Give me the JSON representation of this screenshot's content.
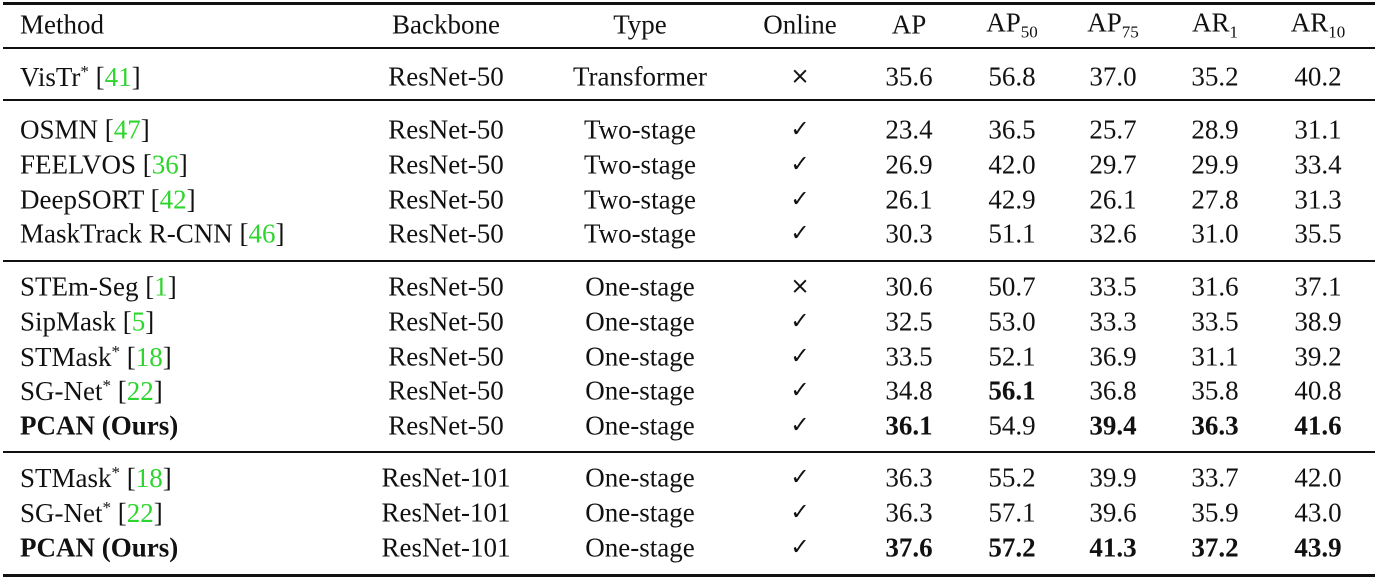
{
  "header": [
    {
      "text": "Method"
    },
    {
      "text": "Backbone"
    },
    {
      "text": "Type"
    },
    {
      "text": "Online"
    },
    {
      "text": "AP"
    },
    {
      "text": "AP",
      "sub": "50"
    },
    {
      "text": "AP",
      "sub": "75"
    },
    {
      "text": "AR",
      "sub": "1"
    },
    {
      "text": "AR",
      "sub": "10"
    }
  ],
  "groups": [
    {
      "rows": [
        {
          "method": [
            {
              "text": "VisTr"
            },
            {
              "text": "*",
              "style": "sup"
            },
            {
              "text": " ["
            },
            {
              "text": "41",
              "style": "cite"
            },
            {
              "text": "]"
            }
          ],
          "backbone": "ResNet-50",
          "type": "Transformer",
          "online": "×",
          "scores": [
            "35.6",
            "56.8",
            "37.0",
            "35.2",
            "40.2"
          ],
          "bold": []
        }
      ]
    },
    {
      "rows": [
        {
          "method": [
            {
              "text": "OSMN ["
            },
            {
              "text": "47",
              "style": "cite"
            },
            {
              "text": "]"
            }
          ],
          "backbone": "ResNet-50",
          "type": "Two-stage",
          "online": "✓",
          "scores": [
            "23.4",
            "36.5",
            "25.7",
            "28.9",
            "31.1"
          ],
          "bold": []
        },
        {
          "method": [
            {
              "text": "FEELVOS ["
            },
            {
              "text": "36",
              "style": "cite"
            },
            {
              "text": "]"
            }
          ],
          "backbone": "ResNet-50",
          "type": "Two-stage",
          "online": "✓",
          "scores": [
            "26.9",
            "42.0",
            "29.7",
            "29.9",
            "33.4"
          ],
          "bold": []
        },
        {
          "method": [
            {
              "text": "DeepSORT ["
            },
            {
              "text": "42",
              "style": "cite"
            },
            {
              "text": "]"
            }
          ],
          "backbone": "ResNet-50",
          "type": "Two-stage",
          "online": "✓",
          "scores": [
            "26.1",
            "42.9",
            "26.1",
            "27.8",
            "31.3"
          ],
          "bold": []
        },
        {
          "method": [
            {
              "text": "MaskTrack R-CNN ["
            },
            {
              "text": "46",
              "style": "cite"
            },
            {
              "text": "]"
            }
          ],
          "backbone": "ResNet-50",
          "type": "Two-stage",
          "online": "✓",
          "scores": [
            "30.3",
            "51.1",
            "32.6",
            "31.0",
            "35.5"
          ],
          "bold": []
        }
      ]
    },
    {
      "rows": [
        {
          "method": [
            {
              "text": "STEm-Seg ["
            },
            {
              "text": "1",
              "style": "cite"
            },
            {
              "text": "]"
            }
          ],
          "backbone": "ResNet-50",
          "type": "One-stage",
          "online": "×",
          "scores": [
            "30.6",
            "50.7",
            "33.5",
            "31.6",
            "37.1"
          ],
          "bold": []
        },
        {
          "method": [
            {
              "text": "SipMask ["
            },
            {
              "text": "5",
              "style": "cite"
            },
            {
              "text": "]"
            }
          ],
          "backbone": "ResNet-50",
          "type": "One-stage",
          "online": "✓",
          "scores": [
            "32.5",
            "53.0",
            "33.3",
            "33.5",
            "38.9"
          ],
          "bold": []
        },
        {
          "method": [
            {
              "text": "STMask"
            },
            {
              "text": "*",
              "style": "sup"
            },
            {
              "text": " ["
            },
            {
              "text": "18",
              "style": "cite"
            },
            {
              "text": "]"
            }
          ],
          "backbone": "ResNet-50",
          "type": "One-stage",
          "online": "✓",
          "scores": [
            "33.5",
            "52.1",
            "36.9",
            "31.1",
            "39.2"
          ],
          "bold": []
        },
        {
          "method": [
            {
              "text": "SG-Net"
            },
            {
              "text": "*",
              "style": "sup"
            },
            {
              "text": " ["
            },
            {
              "text": "22",
              "style": "cite"
            },
            {
              "text": "]"
            }
          ],
          "backbone": "ResNet-50",
          "type": "One-stage",
          "online": "✓",
          "scores": [
            "34.8",
            "56.1",
            "36.8",
            "35.8",
            "40.8"
          ],
          "bold": [
            1
          ]
        },
        {
          "method": [
            {
              "text": "PCAN (Ours)",
              "style": "bold"
            }
          ],
          "backbone": "ResNet-50",
          "type": "One-stage",
          "online": "✓",
          "scores": [
            "36.1",
            "54.9",
            "39.4",
            "36.3",
            "41.6"
          ],
          "bold": [
            0,
            2,
            3,
            4
          ]
        }
      ]
    },
    {
      "rows": [
        {
          "method": [
            {
              "text": "STMask"
            },
            {
              "text": "*",
              "style": "sup"
            },
            {
              "text": " ["
            },
            {
              "text": "18",
              "style": "cite"
            },
            {
              "text": "]"
            }
          ],
          "backbone": "ResNet-101",
          "type": "One-stage",
          "online": "✓",
          "scores": [
            "36.3",
            "55.2",
            "39.9",
            "33.7",
            "42.0"
          ],
          "bold": []
        },
        {
          "method": [
            {
              "text": "SG-Net"
            },
            {
              "text": "*",
              "style": "sup"
            },
            {
              "text": " ["
            },
            {
              "text": "22",
              "style": "cite"
            },
            {
              "text": "]"
            }
          ],
          "backbone": "ResNet-101",
          "type": "One-stage",
          "online": "✓",
          "scores": [
            "36.3",
            "57.1",
            "39.6",
            "35.9",
            "43.0"
          ],
          "bold": []
        },
        {
          "method": [
            {
              "text": "PCAN (Ours)",
              "style": "bold"
            }
          ],
          "backbone": "ResNet-101",
          "type": "One-stage",
          "online": "✓",
          "scores": [
            "37.6",
            "57.2",
            "41.3",
            "37.2",
            "43.9"
          ],
          "bold": [
            0,
            1,
            2,
            3,
            4
          ]
        }
      ]
    }
  ]
}
